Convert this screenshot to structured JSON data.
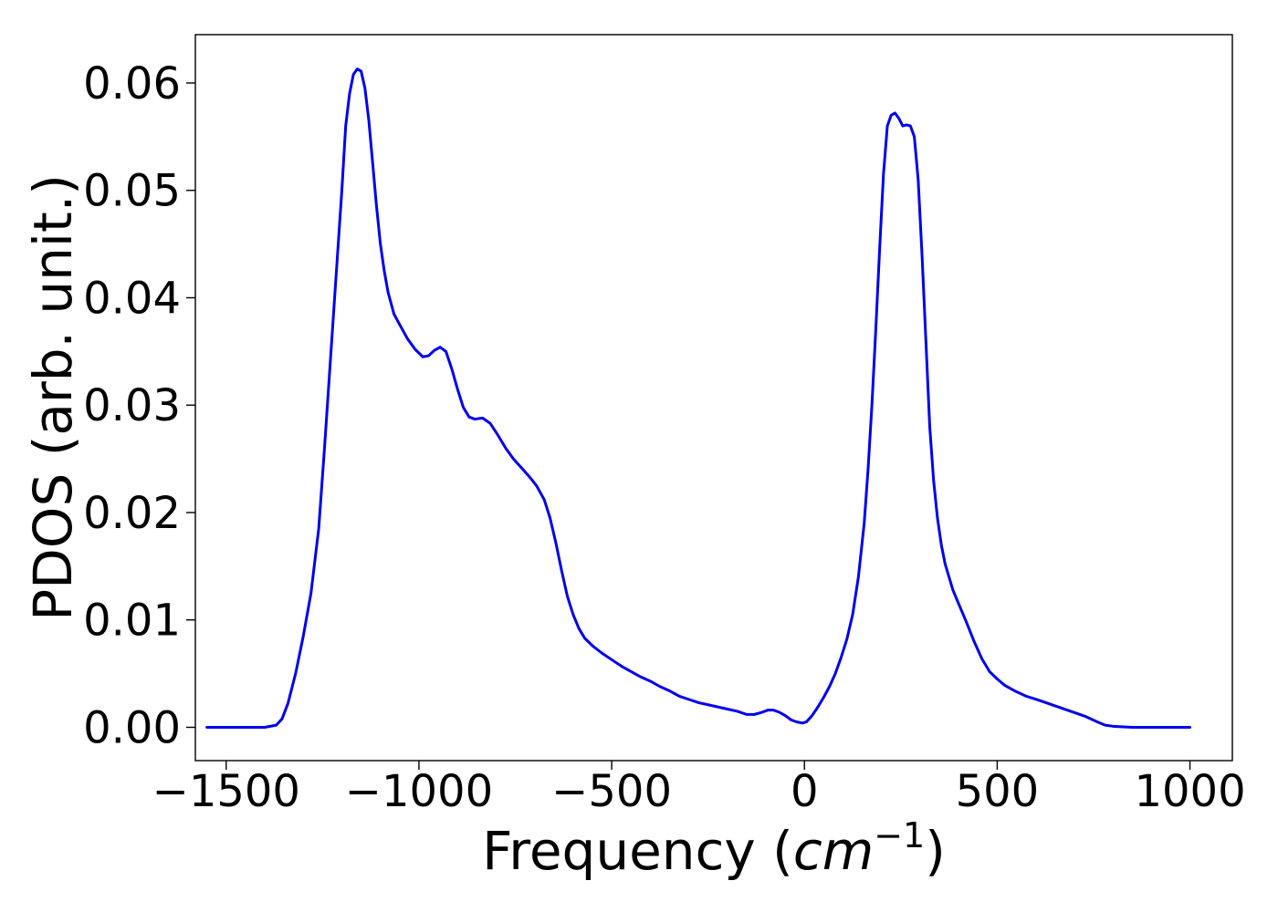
{
  "chart_data": {
    "type": "line",
    "title": "",
    "xlabel": "Frequency",
    "xlabel_unit_base": "cm",
    "xlabel_unit_exp": "−1",
    "ylabel": "PDOS (arb. unit.)",
    "xlim": [
      -1580,
      1110
    ],
    "ylim": [
      -0.0031,
      0.0645
    ],
    "grid": false,
    "legend": "none",
    "xticks": [
      -1500,
      -1000,
      -500,
      0,
      500,
      1000
    ],
    "xtick_labels": [
      "−1500",
      "−1000",
      "−500",
      "0",
      "500",
      "1000"
    ],
    "yticks": [
      0.0,
      0.01,
      0.02,
      0.03,
      0.04,
      0.05,
      0.06
    ],
    "ytick_labels": [
      "0.00",
      "0.01",
      "0.02",
      "0.03",
      "0.04",
      "0.05",
      "0.06"
    ],
    "series": [
      {
        "color": "#0000ee",
        "x": [
          -1550,
          -1400,
          -1370,
          -1355,
          -1340,
          -1320,
          -1300,
          -1280,
          -1260,
          -1245,
          -1230,
          -1215,
          -1200,
          -1190,
          -1180,
          -1170,
          -1160,
          -1150,
          -1140,
          -1130,
          -1120,
          -1110,
          -1100,
          -1090,
          -1080,
          -1065,
          -1050,
          -1030,
          -1010,
          -990,
          -975,
          -960,
          -945,
          -930,
          -915,
          -900,
          -885,
          -870,
          -855,
          -835,
          -815,
          -795,
          -775,
          -755,
          -735,
          -715,
          -695,
          -675,
          -660,
          -645,
          -630,
          -615,
          -600,
          -585,
          -570,
          -550,
          -525,
          -500,
          -475,
          -450,
          -425,
          -400,
          -375,
          -350,
          -325,
          -300,
          -275,
          -250,
          -225,
          -200,
          -175,
          -150,
          -130,
          -110,
          -95,
          -80,
          -65,
          -50,
          -35,
          -20,
          -5,
          5,
          20,
          35,
          50,
          65,
          80,
          95,
          110,
          125,
          140,
          155,
          165,
          175,
          185,
          195,
          205,
          215,
          225,
          235,
          245,
          255,
          265,
          275,
          285,
          295,
          305,
          315,
          325,
          335,
          345,
          355,
          365,
          375,
          385,
          400,
          420,
          440,
          460,
          480,
          500,
          520,
          545,
          575,
          610,
          650,
          690,
          730,
          760,
          780,
          800,
          850,
          1000
        ],
        "y": [
          0.0,
          0.0,
          0.0002,
          0.0008,
          0.0022,
          0.005,
          0.0085,
          0.0125,
          0.0185,
          0.026,
          0.034,
          0.042,
          0.05,
          0.056,
          0.059,
          0.0608,
          0.0613,
          0.0611,
          0.0595,
          0.0565,
          0.0525,
          0.0485,
          0.045,
          0.0425,
          0.0405,
          0.0385,
          0.0375,
          0.0362,
          0.0352,
          0.0345,
          0.0346,
          0.0351,
          0.0354,
          0.035,
          0.0334,
          0.0315,
          0.0298,
          0.0289,
          0.0287,
          0.0288,
          0.0283,
          0.0272,
          0.026,
          0.025,
          0.0242,
          0.0234,
          0.0225,
          0.0212,
          0.0195,
          0.0172,
          0.0146,
          0.0122,
          0.0105,
          0.0092,
          0.0083,
          0.0076,
          0.0069,
          0.0063,
          0.0057,
          0.0052,
          0.0047,
          0.0043,
          0.0038,
          0.0034,
          0.0029,
          0.0026,
          0.0023,
          0.0021,
          0.0019,
          0.0017,
          0.0015,
          0.0012,
          0.0012,
          0.0014,
          0.0016,
          0.0016,
          0.0014,
          0.0011,
          0.0007,
          0.0005,
          0.0004,
          0.0005,
          0.0011,
          0.0019,
          0.0028,
          0.0038,
          0.005,
          0.0065,
          0.0082,
          0.0105,
          0.014,
          0.019,
          0.024,
          0.03,
          0.037,
          0.0445,
          0.0515,
          0.056,
          0.057,
          0.0572,
          0.0567,
          0.056,
          0.0561,
          0.056,
          0.055,
          0.051,
          0.044,
          0.036,
          0.028,
          0.023,
          0.0195,
          0.017,
          0.0152,
          0.014,
          0.0128,
          0.0115,
          0.0098,
          0.008,
          0.0064,
          0.0052,
          0.0045,
          0.0039,
          0.0034,
          0.0029,
          0.0025,
          0.002,
          0.0015,
          0.001,
          0.0005,
          0.0002,
          0.0001,
          0.0,
          0.0
        ]
      }
    ]
  }
}
